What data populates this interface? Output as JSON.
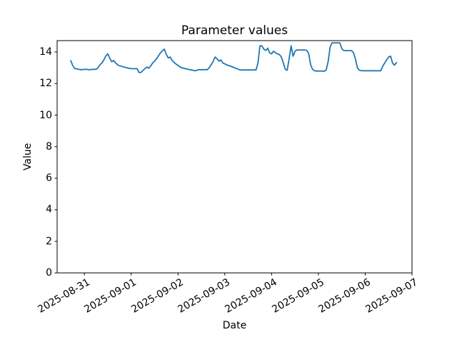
{
  "colors": {
    "line": "#1f77b4",
    "text": "#000000",
    "spine": "#000000",
    "background": "#ffffff"
  },
  "chart_data": {
    "type": "line",
    "title": "Parameter values",
    "xlabel": "Date",
    "ylabel": "Value",
    "grid": false,
    "legend": null,
    "x_tick_labels": [
      "2025-08-31",
      "2025-09-01",
      "2025-09-02",
      "2025-09-03",
      "2025-09-04",
      "2025-09-05",
      "2025-09-06",
      "2025-09-07"
    ],
    "x_ticks_hours": [
      7,
      31,
      55,
      79,
      103,
      127,
      151,
      175
    ],
    "y_ticks": [
      0,
      2,
      4,
      6,
      8,
      10,
      12,
      14
    ],
    "ylim": [
      0,
      14.72
    ],
    "xlim_hours": [
      -7,
      175
    ],
    "series_start": "2025-08-30 17:00",
    "series_interval_hours": 1,
    "values": [
      13.45,
      13.15,
      12.95,
      12.93,
      12.9,
      12.88,
      12.88,
      12.9,
      12.9,
      12.88,
      12.88,
      12.9,
      12.9,
      12.9,
      13.0,
      13.2,
      13.3,
      13.5,
      13.76,
      13.88,
      13.6,
      13.38,
      13.46,
      13.3,
      13.19,
      13.12,
      13.1,
      13.05,
      13.02,
      12.99,
      12.96,
      12.94,
      12.94,
      12.94,
      12.94,
      12.7,
      12.7,
      12.83,
      12.94,
      13.05,
      12.97,
      13.12,
      13.3,
      13.42,
      13.57,
      13.76,
      13.94,
      14.09,
      14.18,
      13.85,
      13.62,
      13.68,
      13.46,
      13.34,
      13.23,
      13.15,
      13.05,
      13.0,
      12.97,
      12.93,
      12.9,
      12.88,
      12.86,
      12.83,
      12.81,
      12.86,
      12.88,
      12.88,
      12.88,
      12.88,
      12.88,
      13.0,
      13.19,
      13.4,
      13.68,
      13.57,
      13.42,
      13.49,
      13.3,
      13.25,
      13.18,
      13.14,
      13.1,
      13.05,
      13.0,
      12.95,
      12.9,
      12.86,
      12.86,
      12.86,
      12.86,
      12.86,
      12.86,
      12.86,
      12.86,
      12.86,
      13.3,
      14.39,
      14.39,
      14.18,
      14.1,
      14.24,
      13.95,
      13.88,
      14.05,
      13.95,
      13.88,
      13.83,
      13.68,
      13.3,
      12.9,
      12.84,
      13.6,
      14.39,
      13.73,
      14.05,
      14.13,
      14.13,
      14.13,
      14.13,
      14.13,
      14.1,
      13.9,
      13.2,
      12.9,
      12.81,
      12.79,
      12.79,
      12.79,
      12.79,
      12.78,
      12.86,
      13.4,
      14.3,
      14.58,
      14.58,
      14.58,
      14.58,
      14.58,
      14.2,
      14.09,
      14.09,
      14.09,
      14.09,
      14.09,
      13.95,
      13.55,
      13.0,
      12.84,
      12.82,
      12.81,
      12.81,
      12.81,
      12.81,
      12.81,
      12.81,
      12.81,
      12.81,
      12.81,
      12.81,
      13.1,
      13.3,
      13.5,
      13.68,
      13.73,
      13.3,
      13.16,
      13.33
    ]
  }
}
